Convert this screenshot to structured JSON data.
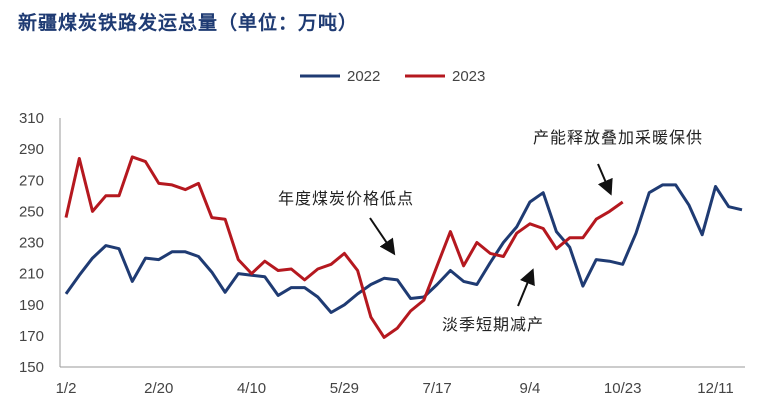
{
  "chart_data": {
    "type": "line",
    "title": "新疆煤炭铁路发运总量（单位：万吨）",
    "xlabel": "",
    "ylabel": "",
    "ylim": [
      150,
      310
    ],
    "yticks": [
      150,
      170,
      190,
      210,
      230,
      250,
      270,
      290,
      310
    ],
    "xticks": [
      "1/2",
      "2/20",
      "4/10",
      "5/29",
      "7/17",
      "9/4",
      "10/23",
      "12/11"
    ],
    "grid": false,
    "legend": "top-center",
    "series": [
      {
        "name": "2022",
        "color": "#1f3b73",
        "values": [
          197,
          209,
          220,
          228,
          226,
          205,
          220,
          219,
          224,
          224,
          221,
          211,
          198,
          210,
          209,
          208,
          196,
          201,
          201,
          195,
          185,
          190,
          197,
          203,
          207,
          206,
          194,
          195,
          203,
          212,
          205,
          203,
          217,
          230,
          240,
          256,
          262,
          237,
          227,
          202,
          219,
          218,
          216,
          236,
          262,
          267,
          267,
          254,
          235,
          266,
          253,
          251
        ]
      },
      {
        "name": "2023",
        "color": "#b5181f",
        "values": [
          246,
          284,
          250,
          260,
          260,
          285,
          282,
          268,
          267,
          264,
          268,
          246,
          245,
          219,
          210,
          218,
          212,
          213,
          206,
          213,
          216,
          223,
          212,
          182,
          169,
          175,
          186,
          193,
          215,
          237,
          215,
          230,
          223,
          221,
          236,
          242,
          239,
          226,
          233,
          233,
          245,
          250,
          256
        ]
      }
    ],
    "annotations": [
      {
        "text": "年度煤炭价格低点",
        "arrow_to": "5/29 trough"
      },
      {
        "text": "淡季短期减产",
        "arrow_to": "9/4 rise"
      },
      {
        "text": "产能释放叠加采暖保供",
        "arrow_to": "10/23 peak"
      }
    ]
  }
}
